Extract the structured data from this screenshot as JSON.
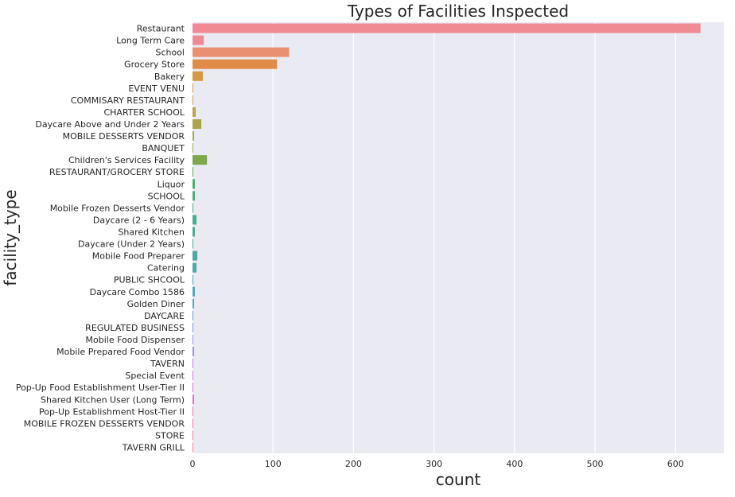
{
  "chart_data": {
    "type": "bar",
    "orientation": "horizontal",
    "title": "Types of Facilities Inspected",
    "xlabel": "count",
    "ylabel": "facility_type",
    "xlim": [
      0,
      660
    ],
    "xticks": [
      0,
      100,
      200,
      300,
      400,
      500,
      600
    ],
    "grid": true,
    "legend": "none",
    "categories": [
      "Restaurant",
      "Long Term Care",
      "School",
      "Grocery Store",
      "Bakery",
      "EVENT VENU",
      "COMMISARY RESTAURANT",
      "CHARTER SCHOOL",
      "Daycare Above and Under 2 Years",
      "MOBILE DESSERTS VENDOR",
      "BANQUET",
      "Children's Services Facility",
      "RESTAURANT/GROCERY STORE",
      "Liquor",
      "SCHOOL",
      "Mobile Frozen Desserts Vendor",
      "Daycare (2 - 6 Years)",
      "Shared Kitchen",
      "Daycare (Under 2 Years)",
      "Mobile Food Preparer",
      "Catering",
      "PUBLIC SHCOOL",
      "Daycare Combo 1586",
      "Golden Diner",
      "DAYCARE",
      "REGULATED BUSINESS",
      "Mobile Food Dispenser",
      "Mobile Prepared Food Vendor",
      "TAVERN",
      "Special Event",
      "Pop-Up Food Establishment User-Tier II",
      "Shared Kitchen User (Long Term)",
      "Pop-Up Establishment Host-Tier II",
      "MOBILE FROZEN DESSERTS VENDOR",
      "STORE",
      "TAVERN GRILL"
    ],
    "values": [
      631,
      14,
      120,
      105,
      13,
      1,
      1,
      4,
      11,
      2,
      1,
      18,
      1,
      3,
      3,
      1,
      5,
      3,
      1,
      6,
      5,
      1,
      3,
      2,
      1,
      1,
      1,
      2,
      1,
      1,
      1,
      2,
      1,
      1,
      1,
      1
    ],
    "colors": [
      "#f08a93",
      "#ef8a95",
      "#e99072",
      "#e08c48",
      "#d39a45",
      "#cc9e43",
      "#c4a344",
      "#baa645",
      "#aea54a",
      "#a4aa4b",
      "#97ad4c",
      "#7ea84c",
      "#5cae53",
      "#4cb06a",
      "#49af7b",
      "#48ad86",
      "#49ae8f",
      "#4aad97",
      "#4aab9e",
      "#4aaaa6",
      "#4ca9ad",
      "#4ea9b4",
      "#50a8bc",
      "#53a6c3",
      "#64a2cc",
      "#7f9fd2",
      "#9598d8",
      "#a88fd9",
      "#b787d8",
      "#c67fd6",
      "#d277d2",
      "#e06fc7",
      "#e874b7",
      "#eb7aa9",
      "#ee7f9b",
      "#f08592"
    ]
  }
}
